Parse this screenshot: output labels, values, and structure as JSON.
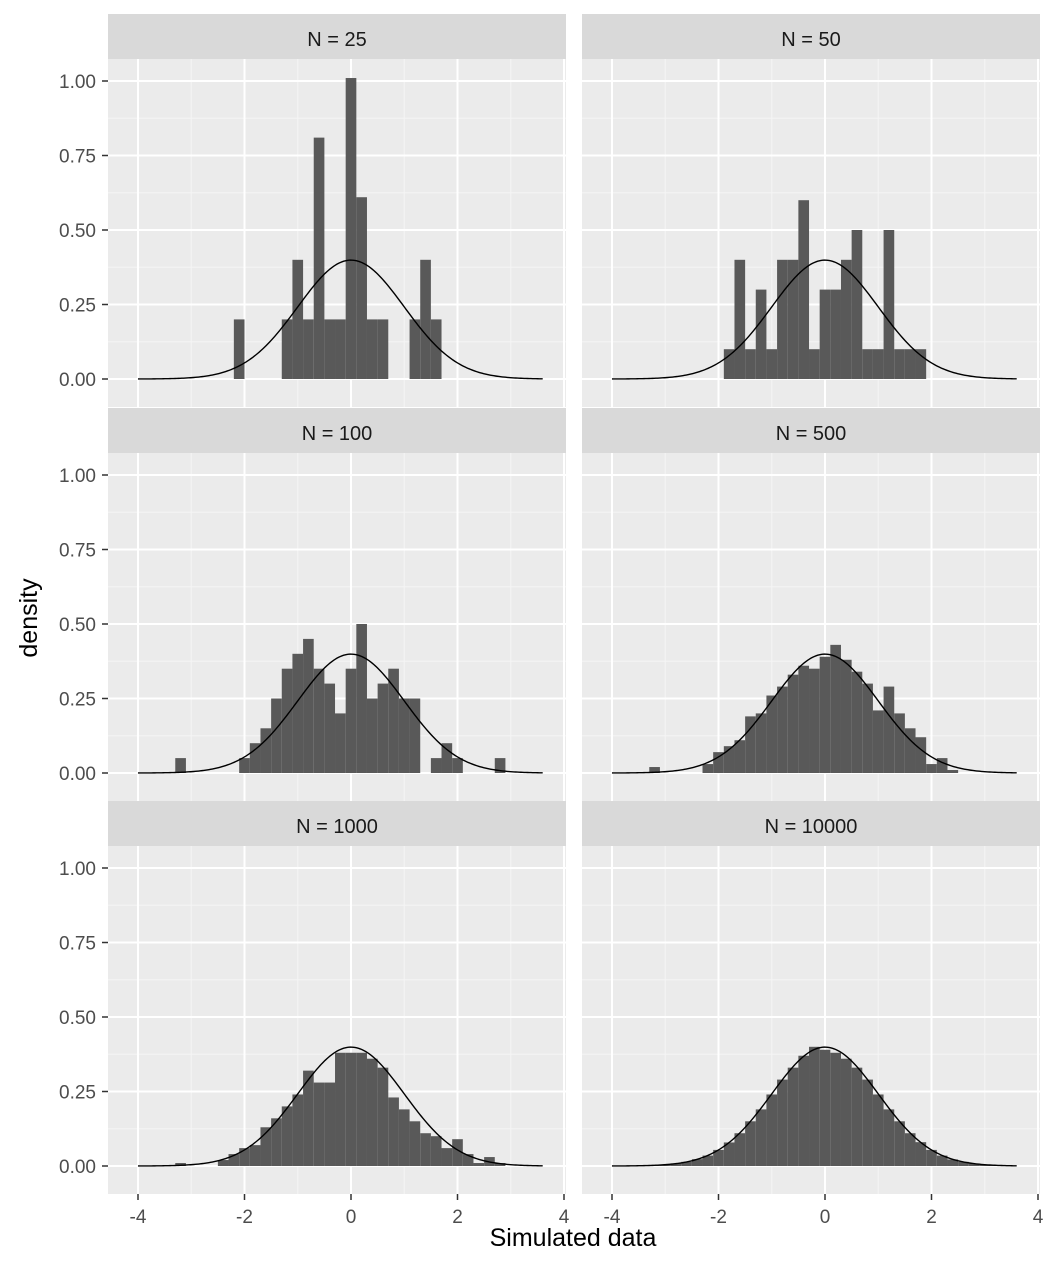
{
  "colors": {
    "panel_background": "#ebebeb",
    "strip_background": "#d9d9d9",
    "grid_major": "#ffffff",
    "grid_minor": "#f5f5f5",
    "bar_fill": "#595959",
    "curve": "#000000",
    "tick_mark": "#333333"
  },
  "chart_data": {
    "type": "bar",
    "layout": "facet grid, 3 rows x 2 columns, shared x and y axes",
    "xlabel": "Simulated data",
    "ylabel": "density",
    "xlim": [
      -4.7,
      4.2
    ],
    "ylim": [
      -0.05,
      1.1
    ],
    "x_ticks": [
      -4,
      -2,
      0,
      2,
      4
    ],
    "x_tick_labels": [
      "-4",
      "-2",
      "0",
      "2",
      "4"
    ],
    "y_ticks": [
      0,
      0.25,
      0.5,
      0.75,
      1
    ],
    "y_tick_labels": [
      "0.00",
      "0.25",
      "0.50",
      "0.75",
      "1.00"
    ],
    "grid": true,
    "overlay": {
      "type": "line",
      "description": "standard normal density curve N(0,1) drawn in every panel",
      "x_range": [
        -4,
        3.6
      ],
      "peak": 0.399
    },
    "panels": [
      {
        "strip": "N = 25",
        "bin_width": 0.2,
        "bins": [
          {
            "x": -2.1,
            "density": 0.2
          },
          {
            "x": -1.2,
            "density": 0.2
          },
          {
            "x": -1.0,
            "density": 0.4
          },
          {
            "x": -0.8,
            "density": 0.2
          },
          {
            "x": -0.6,
            "density": 0.81
          },
          {
            "x": -0.4,
            "density": 0.2
          },
          {
            "x": -0.2,
            "density": 0.2
          },
          {
            "x": 0.0,
            "density": 1.01
          },
          {
            "x": 0.2,
            "density": 0.61
          },
          {
            "x": 0.4,
            "density": 0.2
          },
          {
            "x": 0.6,
            "density": 0.2
          },
          {
            "x": 1.2,
            "density": 0.2
          },
          {
            "x": 1.4,
            "density": 0.4
          },
          {
            "x": 1.6,
            "density": 0.2
          }
        ]
      },
      {
        "strip": "N = 50",
        "bin_width": 0.2,
        "bins": [
          {
            "x": -1.8,
            "density": 0.1
          },
          {
            "x": -1.6,
            "density": 0.4
          },
          {
            "x": -1.4,
            "density": 0.1
          },
          {
            "x": -1.2,
            "density": 0.3
          },
          {
            "x": -1.0,
            "density": 0.1
          },
          {
            "x": -0.8,
            "density": 0.4
          },
          {
            "x": -0.6,
            "density": 0.4
          },
          {
            "x": -0.4,
            "density": 0.6
          },
          {
            "x": -0.2,
            "density": 0.1
          },
          {
            "x": 0.0,
            "density": 0.3
          },
          {
            "x": 0.2,
            "density": 0.3
          },
          {
            "x": 0.4,
            "density": 0.4
          },
          {
            "x": 0.6,
            "density": 0.5
          },
          {
            "x": 0.8,
            "density": 0.1
          },
          {
            "x": 1.0,
            "density": 0.1
          },
          {
            "x": 1.2,
            "density": 0.5
          },
          {
            "x": 1.4,
            "density": 0.1
          },
          {
            "x": 1.6,
            "density": 0.1
          },
          {
            "x": 1.8,
            "density": 0.1
          }
        ]
      },
      {
        "strip": "N = 100",
        "bin_width": 0.2,
        "bins": [
          {
            "x": -3.2,
            "density": 0.05
          },
          {
            "x": -2.0,
            "density": 0.05
          },
          {
            "x": -1.8,
            "density": 0.1
          },
          {
            "x": -1.6,
            "density": 0.15
          },
          {
            "x": -1.4,
            "density": 0.25
          },
          {
            "x": -1.2,
            "density": 0.35
          },
          {
            "x": -1.0,
            "density": 0.4
          },
          {
            "x": -0.8,
            "density": 0.45
          },
          {
            "x": -0.6,
            "density": 0.35
          },
          {
            "x": -0.4,
            "density": 0.3
          },
          {
            "x": -0.2,
            "density": 0.2
          },
          {
            "x": 0.0,
            "density": 0.35
          },
          {
            "x": 0.2,
            "density": 0.5
          },
          {
            "x": 0.4,
            "density": 0.25
          },
          {
            "x": 0.6,
            "density": 0.3
          },
          {
            "x": 0.8,
            "density": 0.35
          },
          {
            "x": 1.0,
            "density": 0.25
          },
          {
            "x": 1.2,
            "density": 0.25
          },
          {
            "x": 1.6,
            "density": 0.05
          },
          {
            "x": 1.8,
            "density": 0.1
          },
          {
            "x": 2.0,
            "density": 0.05
          },
          {
            "x": 2.8,
            "density": 0.05
          }
        ]
      },
      {
        "strip": "N = 500",
        "bin_width": 0.2,
        "bins": [
          {
            "x": -3.2,
            "density": 0.02
          },
          {
            "x": -2.2,
            "density": 0.03
          },
          {
            "x": -2.0,
            "density": 0.07
          },
          {
            "x": -1.8,
            "density": 0.09
          },
          {
            "x": -1.6,
            "density": 0.11
          },
          {
            "x": -1.4,
            "density": 0.19
          },
          {
            "x": -1.2,
            "density": 0.2
          },
          {
            "x": -1.0,
            "density": 0.26
          },
          {
            "x": -0.8,
            "density": 0.29
          },
          {
            "x": -0.6,
            "density": 0.33
          },
          {
            "x": -0.4,
            "density": 0.36
          },
          {
            "x": -0.2,
            "density": 0.35
          },
          {
            "x": 0.0,
            "density": 0.39
          },
          {
            "x": 0.2,
            "density": 0.43
          },
          {
            "x": 0.4,
            "density": 0.38
          },
          {
            "x": 0.6,
            "density": 0.34
          },
          {
            "x": 0.8,
            "density": 0.3
          },
          {
            "x": 1.0,
            "density": 0.21
          },
          {
            "x": 1.2,
            "density": 0.29
          },
          {
            "x": 1.4,
            "density": 0.2
          },
          {
            "x": 1.6,
            "density": 0.15
          },
          {
            "x": 1.8,
            "density": 0.12
          },
          {
            "x": 2.0,
            "density": 0.03
          },
          {
            "x": 2.2,
            "density": 0.05
          },
          {
            "x": 2.4,
            "density": 0.01
          }
        ]
      },
      {
        "strip": "N = 1000",
        "bin_width": 0.2,
        "bins": [
          {
            "x": -3.2,
            "density": 0.01
          },
          {
            "x": -2.4,
            "density": 0.02
          },
          {
            "x": -2.2,
            "density": 0.04
          },
          {
            "x": -2.0,
            "density": 0.06
          },
          {
            "x": -1.8,
            "density": 0.07
          },
          {
            "x": -1.6,
            "density": 0.13
          },
          {
            "x": -1.4,
            "density": 0.16
          },
          {
            "x": -1.2,
            "density": 0.2
          },
          {
            "x": -1.0,
            "density": 0.24
          },
          {
            "x": -0.8,
            "density": 0.32
          },
          {
            "x": -0.6,
            "density": 0.28
          },
          {
            "x": -0.4,
            "density": 0.28
          },
          {
            "x": -0.2,
            "density": 0.38
          },
          {
            "x": 0.0,
            "density": 0.38
          },
          {
            "x": 0.2,
            "density": 0.38
          },
          {
            "x": 0.4,
            "density": 0.36
          },
          {
            "x": 0.6,
            "density": 0.33
          },
          {
            "x": 0.8,
            "density": 0.23
          },
          {
            "x": 1.0,
            "density": 0.19
          },
          {
            "x": 1.2,
            "density": 0.15
          },
          {
            "x": 1.4,
            "density": 0.11
          },
          {
            "x": 1.6,
            "density": 0.1
          },
          {
            "x": 1.8,
            "density": 0.06
          },
          {
            "x": 2.0,
            "density": 0.09
          },
          {
            "x": 2.2,
            "density": 0.04
          },
          {
            "x": 2.4,
            "density": 0.01
          },
          {
            "x": 2.6,
            "density": 0.03
          },
          {
            "x": 2.8,
            "density": 0.01
          }
        ]
      },
      {
        "strip": "N = 10000",
        "bin_width": 0.2,
        "bins": [
          {
            "x": -3.2,
            "density": 0.003
          },
          {
            "x": -3.0,
            "density": 0.005
          },
          {
            "x": -2.8,
            "density": 0.009
          },
          {
            "x": -2.6,
            "density": 0.014
          },
          {
            "x": -2.4,
            "density": 0.023
          },
          {
            "x": -2.2,
            "density": 0.035
          },
          {
            "x": -2.0,
            "density": 0.054
          },
          {
            "x": -1.8,
            "density": 0.079
          },
          {
            "x": -1.6,
            "density": 0.11
          },
          {
            "x": -1.4,
            "density": 0.15
          },
          {
            "x": -1.2,
            "density": 0.19
          },
          {
            "x": -1.0,
            "density": 0.24
          },
          {
            "x": -0.8,
            "density": 0.29
          },
          {
            "x": -0.6,
            "density": 0.33
          },
          {
            "x": -0.4,
            "density": 0.37
          },
          {
            "x": -0.2,
            "density": 0.4
          },
          {
            "x": 0.0,
            "density": 0.39
          },
          {
            "x": 0.2,
            "density": 0.38
          },
          {
            "x": 0.4,
            "density": 0.36
          },
          {
            "x": 0.6,
            "density": 0.33
          },
          {
            "x": 0.8,
            "density": 0.29
          },
          {
            "x": 1.0,
            "density": 0.24
          },
          {
            "x": 1.2,
            "density": 0.19
          },
          {
            "x": 1.4,
            "density": 0.15
          },
          {
            "x": 1.6,
            "density": 0.11
          },
          {
            "x": 1.8,
            "density": 0.08
          },
          {
            "x": 2.0,
            "density": 0.054
          },
          {
            "x": 2.2,
            "density": 0.035
          },
          {
            "x": 2.4,
            "density": 0.022
          },
          {
            "x": 2.6,
            "density": 0.014
          },
          {
            "x": 2.8,
            "density": 0.008
          },
          {
            "x": 3.0,
            "density": 0.004
          },
          {
            "x": 3.2,
            "density": 0.002
          }
        ]
      }
    ]
  }
}
